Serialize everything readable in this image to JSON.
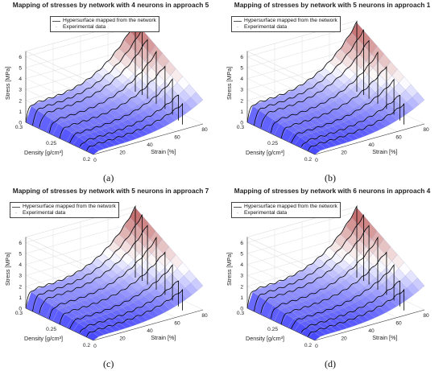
{
  "chart_data": [
    {
      "type": "surface3d",
      "panel_label": "(a)",
      "title": "Mapping of stresses by network with 4 neurons in approach 5",
      "xlabel": "Strain [%]",
      "ylabel": "Density [g/cm³]",
      "zlabel": "Stress [MPa]",
      "xlim": [
        0,
        80
      ],
      "ylim": [
        0.2,
        0.3
      ],
      "zlim": [
        0,
        6.5
      ],
      "x_ticks": [
        "0",
        "20",
        "40",
        "60",
        "80"
      ],
      "y_ticks": [
        "0.2",
        "0.25",
        "0.3"
      ],
      "z_ticks": [
        "0",
        "1",
        "2",
        "3",
        "4",
        "5",
        "6"
      ],
      "legend": [
        "Hypersurface mapped from the network",
        "Experimental data"
      ],
      "surface_stress_at_80pct": {
        "density": [
          0.2,
          0.25,
          0.3
        ],
        "stress": [
          2.2,
          4.3,
          6.4
        ]
      }
    },
    {
      "type": "surface3d",
      "panel_label": "(b)",
      "title": "Mapping of stresses by network with 5 neurons in approach 1",
      "xlabel": "Strain [%]",
      "ylabel": "Density [g/cm³]",
      "zlabel": "Stress [MPa]",
      "xlim": [
        0,
        80
      ],
      "ylim": [
        0.2,
        0.3
      ],
      "zlim": [
        0,
        6.5
      ],
      "x_ticks": [
        "0",
        "20",
        "40",
        "60",
        "80"
      ],
      "y_ticks": [
        "0.2",
        "0.25",
        "0.3"
      ],
      "z_ticks": [
        "0",
        "1",
        "2",
        "3",
        "4",
        "5",
        "6"
      ],
      "legend": [
        "Hypersurface mapped from the network",
        "Experimental data"
      ],
      "surface_stress_at_80pct": {
        "density": [
          0.2,
          0.25,
          0.3
        ],
        "stress": [
          2.2,
          4.2,
          6.3
        ]
      }
    },
    {
      "type": "surface3d",
      "panel_label": "(c)",
      "title": "Mapping of stresses by network with 5 neurons in approach 7",
      "xlabel": "Strain [%]",
      "ylabel": "Density [g/cm³]",
      "zlabel": "Stress [MPa]",
      "xlim": [
        0,
        80
      ],
      "ylim": [
        0.2,
        0.3
      ],
      "zlim": [
        0,
        6.5
      ],
      "x_ticks": [
        "0",
        "20",
        "40",
        "60",
        "80"
      ],
      "y_ticks": [
        "0.2",
        "0.25",
        "0.3"
      ],
      "z_ticks": [
        "0",
        "1",
        "2",
        "3",
        "4",
        "5",
        "6"
      ],
      "legend": [
        "Hypersurface mapped from the network",
        "Experimental data"
      ],
      "surface_stress_at_80pct": {
        "density": [
          0.2,
          0.25,
          0.3
        ],
        "stress": [
          2.2,
          4.3,
          6.4
        ]
      }
    },
    {
      "type": "surface3d",
      "panel_label": "(d)",
      "title": "Mapping of stresses by network with 6 neurons in approach 4",
      "xlabel": "Strain [%]",
      "ylabel": "Density [g/cm³]",
      "zlabel": "Stress [MPa]",
      "xlim": [
        0,
        80
      ],
      "ylim": [
        0.2,
        0.3
      ],
      "zlim": [
        0,
        6.5
      ],
      "x_ticks": [
        "0",
        "20",
        "40",
        "60",
        "80"
      ],
      "y_ticks": [
        "0.2",
        "0.25",
        "0.3"
      ],
      "z_ticks": [
        "0",
        "1",
        "2",
        "3",
        "4",
        "5",
        "6"
      ],
      "legend": [
        "Hypersurface mapped from the network",
        "Experimental data"
      ],
      "surface_stress_at_80pct": {
        "density": [
          0.2,
          0.25,
          0.3
        ],
        "stress": [
          2.2,
          4.3,
          6.4
        ]
      }
    }
  ],
  "colors": {
    "surface_low": "#4040ff",
    "surface_high": "#c06060",
    "experimental_line": "#000000",
    "axes": "#333333"
  }
}
